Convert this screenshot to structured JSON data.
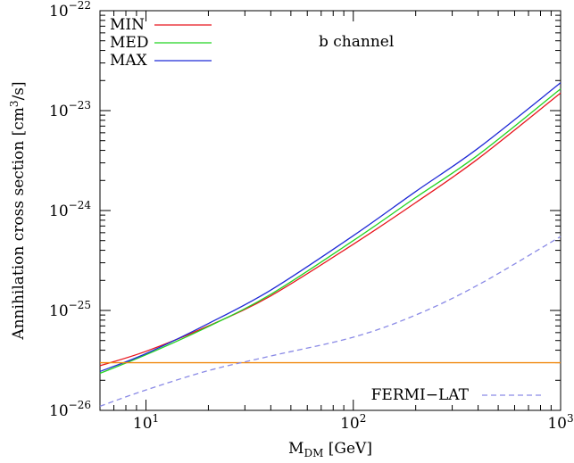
{
  "chart_data": {
    "type": "line",
    "title": "",
    "annotation": "b channel",
    "xlabel_main": "M",
    "xlabel_sub": "DM",
    "xlabel_unit": " [GeV]",
    "ylabel_main": "Annihilation cross section [cm",
    "ylabel_sup": "3",
    "ylabel_end": "/s]",
    "xscale": "log",
    "yscale": "log",
    "xlim": [
      6.0,
      1000
    ],
    "ylim": [
      1e-26,
      1e-22
    ],
    "grid": false,
    "legend_position": "top-left",
    "x_ticks": [
      {
        "value": 10,
        "base": "10",
        "exp": "1"
      },
      {
        "value": 100,
        "base": "10",
        "exp": "2"
      },
      {
        "value": 1000,
        "base": "10",
        "exp": "3"
      }
    ],
    "y_ticks": [
      {
        "value": 1e-26,
        "base": "10",
        "exp": "−26"
      },
      {
        "value": 1e-25,
        "base": "10",
        "exp": "−25"
      },
      {
        "value": 1e-24,
        "base": "10",
        "exp": "−24"
      },
      {
        "value": 1e-23,
        "base": "10",
        "exp": "−23"
      },
      {
        "value": 1e-22,
        "base": "10",
        "exp": "−22"
      }
    ],
    "series": [
      {
        "name": "MIN",
        "color": "#e8141c",
        "dash": "",
        "in_legend": true,
        "x": [
          6,
          10,
          20,
          40,
          100,
          200,
          400,
          1000
        ],
        "y": [
          2.8e-26,
          3.9e-26,
          7e-26,
          1.4e-25,
          4.6e-25,
          1.2e-24,
          3.3e-24,
          1.5e-23
        ]
      },
      {
        "name": "MED",
        "color": "#22d422",
        "dash": "",
        "in_legend": true,
        "x": [
          6,
          10,
          20,
          40,
          100,
          200,
          400,
          1000
        ],
        "y": [
          2.35e-26,
          3.6e-26,
          6.9e-26,
          1.45e-25,
          5e-25,
          1.35e-24,
          3.6e-24,
          1.65e-23
        ]
      },
      {
        "name": "MAX",
        "color": "#1f2ad6",
        "dash": "",
        "in_legend": true,
        "x": [
          6,
          10,
          20,
          40,
          100,
          200,
          400,
          1000
        ],
        "y": [
          2.45e-26,
          3.7e-26,
          7.4e-26,
          1.6e-25,
          5.6e-25,
          1.55e-24,
          4.2e-24,
          1.9e-23
        ]
      },
      {
        "name": "",
        "color": "#f08a10",
        "dash": "",
        "in_legend": false,
        "x": [
          6,
          1000
        ],
        "y": [
          3e-26,
          3e-26
        ]
      },
      {
        "name": "FERMI−LAT",
        "color": "#8a8ae6",
        "dash": "6,4",
        "in_legend": true,
        "x": [
          6,
          10,
          20,
          40,
          100,
          200,
          400,
          1000
        ],
        "y": [
          1.1e-26,
          1.6e-26,
          2.5e-26,
          3.5e-26,
          5.4e-26,
          9e-26,
          1.8e-25,
          5.5e-25
        ]
      }
    ]
  }
}
